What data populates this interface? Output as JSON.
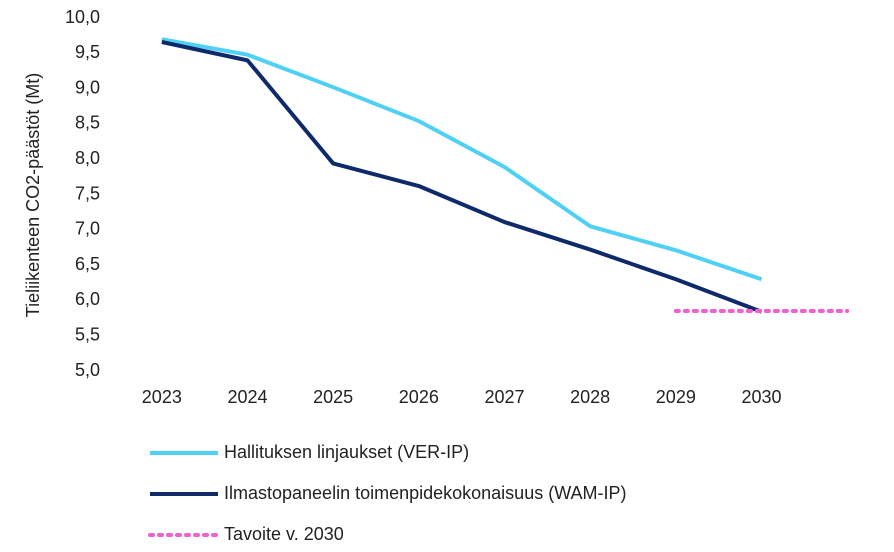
{
  "chart_data": {
    "type": "line",
    "y_label": "Tieliikenteen CO2-päästöt (Mt)",
    "categories": [
      "2023",
      "2024",
      "2025",
      "2026",
      "2027",
      "2028",
      "2029",
      "2030",
      null
    ],
    "series": [
      {
        "name": "Hallituksen linjaukset (VER-IP)",
        "color": "#4fd0f5",
        "style": "solid",
        "values": [
          9.7,
          9.48,
          9.02,
          8.54,
          7.89,
          7.05,
          6.71,
          6.3,
          null
        ]
      },
      {
        "name": "Ilmastopaneelin toimenpidekokonaisuus (WAM-IP)",
        "color": "#0e2a6b",
        "style": "solid",
        "values": [
          9.66,
          9.4,
          7.94,
          7.62,
          7.11,
          6.72,
          6.3,
          5.84,
          null
        ]
      },
      {
        "name": "Tavoite v. 2030",
        "color": "#f060d0",
        "style": "dotted",
        "values": [
          null,
          null,
          null,
          null,
          null,
          null,
          5.85,
          5.85,
          5.85
        ]
      }
    ],
    "ylim": [
      5,
      10
    ],
    "yticks": [
      {
        "value": 5,
        "label": "5,0"
      },
      {
        "value": 5.5,
        "label": "5,5"
      },
      {
        "value": 6,
        "label": "6,0"
      },
      {
        "value": 6.5,
        "label": "6,5"
      },
      {
        "value": 7,
        "label": "7,0"
      },
      {
        "value": 7.5,
        "label": "7,5"
      },
      {
        "value": 8,
        "label": "8,0"
      },
      {
        "value": 8.5,
        "label": "8,5"
      },
      {
        "value": 9,
        "label": "9,0"
      },
      {
        "value": 9.5,
        "label": "9,5"
      },
      {
        "value": 10,
        "label": "10,0"
      }
    ],
    "grid": false
  }
}
